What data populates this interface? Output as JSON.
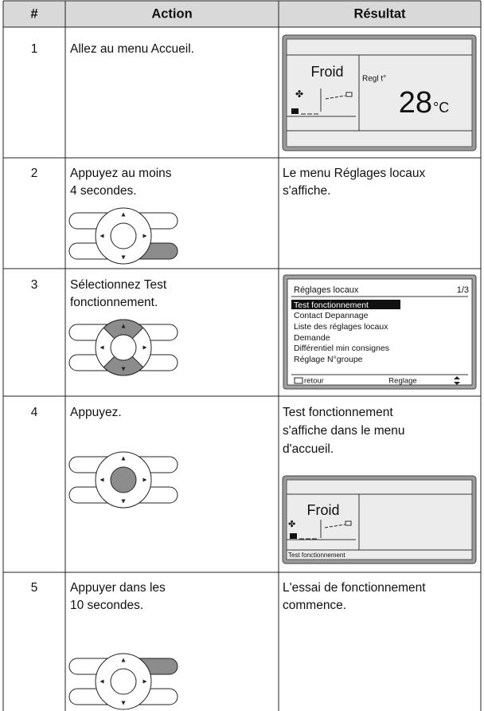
{
  "table": {
    "header": [
      "#",
      "Action",
      "Résultat"
    ],
    "rows": [
      {
        "number": "1",
        "action": [
          "Allez au menu Accueil."
        ],
        "screen": {
          "mode": "Froid",
          "setpoint_label": "Regl t°",
          "temperature": "28",
          "unit": "°C"
        }
      },
      {
        "number": "2",
        "action": [
          "Appuyez au moins",
          "4 secondes."
        ],
        "result": [
          "Le menu Réglages locaux",
          "s'affiche."
        ]
      },
      {
        "number": "3",
        "action": [
          "Sélectionnez Test",
          "fonctionnement."
        ],
        "screen": {
          "title": "Réglages locaux",
          "page": "1/3",
          "items": [
            "Test fonctionnement",
            "Contact Depannage",
            "Liste des réglages locaux",
            "Demande",
            "Différentiel min consignes",
            "Réglage N°groupe"
          ],
          "footer": [
            "retour",
            "Reglage"
          ]
        }
      },
      {
        "number": "4",
        "action": [
          "Appuyez."
        ],
        "result": [
          "Test fonctionnement",
          "s'affiche dans le menu",
          "d'accueil."
        ],
        "screen": {
          "mode": "Froid",
          "status": "Test fonctionnement"
        }
      },
      {
        "number": "5",
        "action": [
          "Appuyer dans les",
          "10 secondes."
        ],
        "result": [
          "L'essai de fonctionnement",
          "commence."
        ]
      }
    ]
  }
}
